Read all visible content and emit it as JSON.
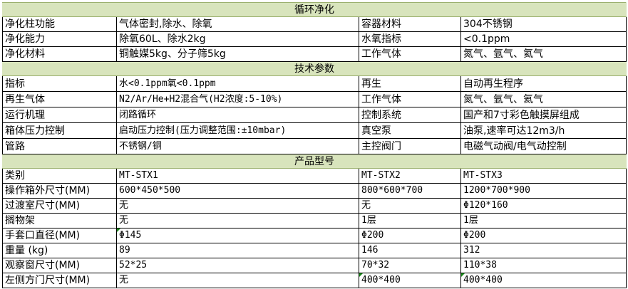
{
  "sections": {
    "circulation": "循环净化",
    "tech": "技术参数",
    "models": "产品型号"
  },
  "circulation_rows": [
    [
      "净化柱功能",
      "气体密封,除水、除氧",
      "容器材料",
      "304不锈钢"
    ],
    [
      "净化能力",
      "除氧60L、除水2kg",
      "水氧指标",
      "<0.1ppm"
    ],
    [
      "净化材料",
      "铜触媒5kg、分子筛5kg",
      "工作气体",
      "氮气、氩气、氦气"
    ]
  ],
  "tech_rows": [
    [
      "指标",
      "水<0.1ppm氧<0.1ppm",
      "再生",
      "自动再生程序"
    ],
    [
      "再生气体",
      "N2/Ar/He+H2混合气(H2浓度:5-10%)",
      "工作气体",
      "氮气、氩气、氦气"
    ],
    [
      "运行机理",
      "闭路循环",
      "控制系统",
      "国产和7寸彩色触摸屏组成"
    ],
    [
      "箱体压力控制",
      "启动压力控制(压力调整范围:±10mbar)",
      "真空泵",
      "油泵,速率可达12m3/h"
    ],
    [
      "管路",
      "不锈钢/铜",
      "主控阀门",
      "电磁气动阀/电气动控制"
    ]
  ],
  "model_rows": [
    [
      "类别",
      "MT-STX1",
      "MT-STX2",
      "MT-STX3"
    ],
    [
      "操作箱外尺寸(MM)",
      "600*450*500",
      "800*600*700",
      "1200*700*900"
    ],
    [
      "过渡室尺寸(MM)",
      "无",
      "无",
      "Φ120*160"
    ],
    [
      "搁物架",
      "无",
      "1层",
      "1层"
    ],
    [
      "手套口直径(MM)",
      "Φ145",
      "Φ200",
      "Φ200"
    ],
    [
      "重量 (kg)",
      "89",
      "146",
      "312"
    ],
    [
      "观察窗尺寸(MM)",
      "52*25",
      "70*32",
      "110*38"
    ],
    [
      "左侧方门尺寸(MM)",
      "无",
      "400*400",
      "400*400"
    ]
  ],
  "colors": {
    "section_bg": "#d8e4bc",
    "comment_marker": "#1a8a1a"
  }
}
